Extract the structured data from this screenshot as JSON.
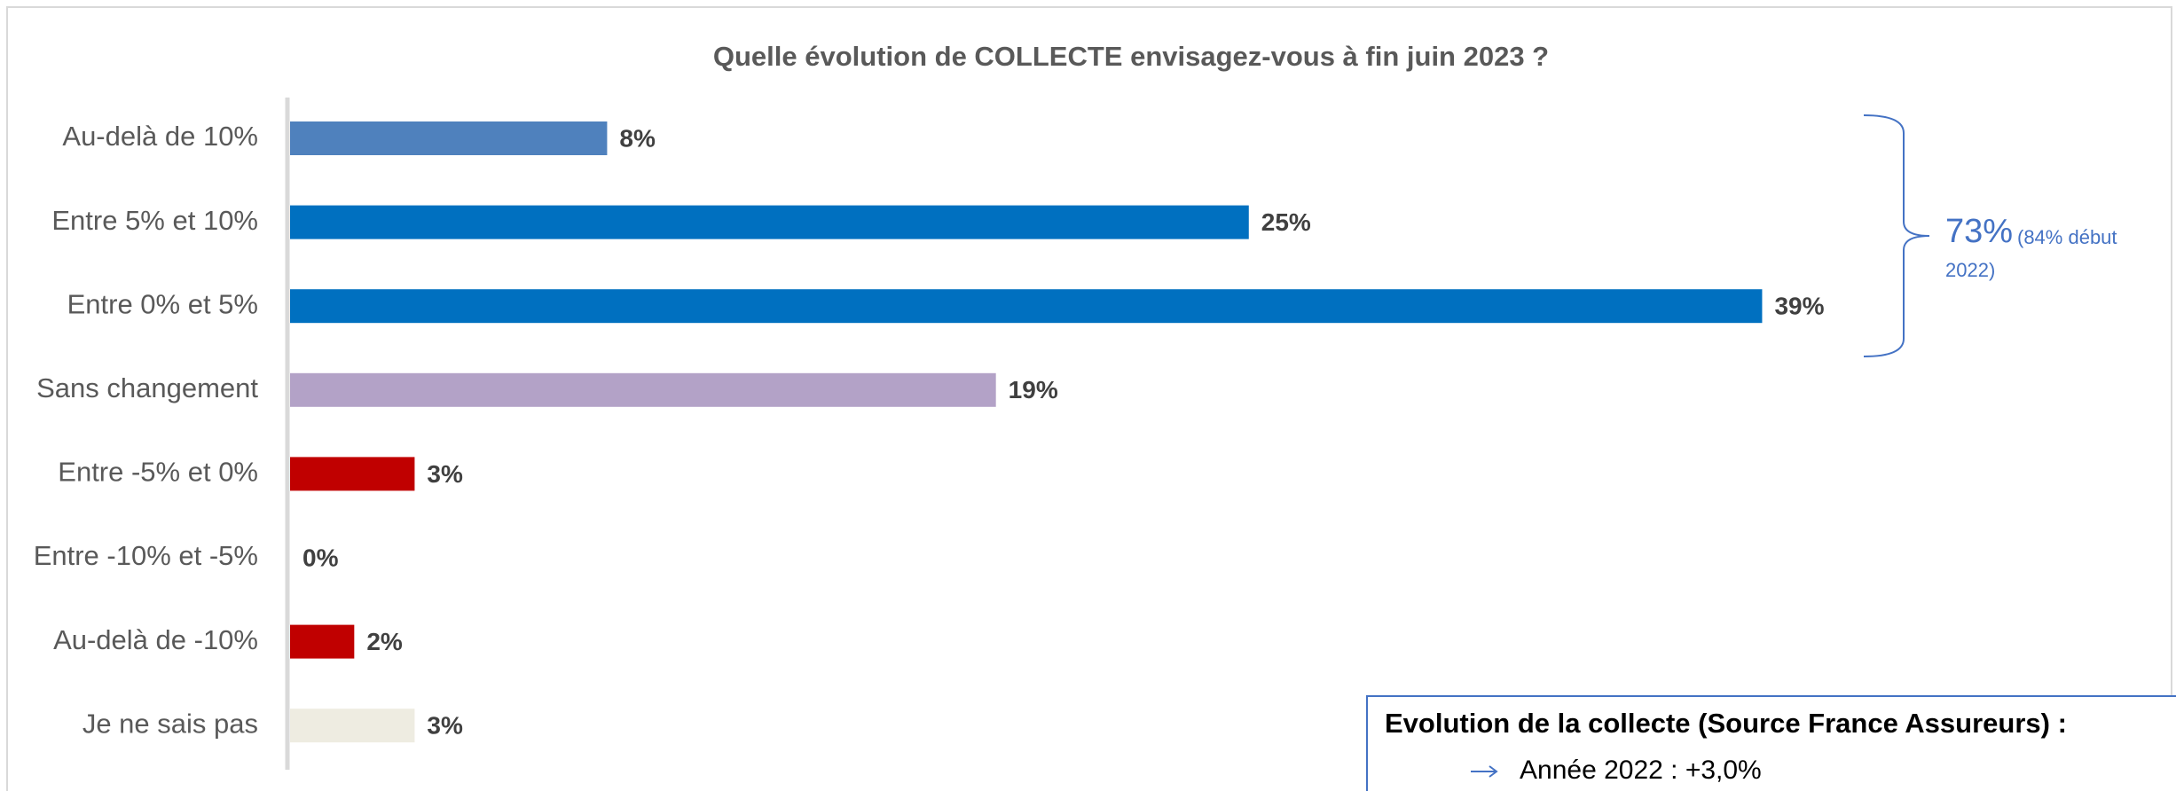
{
  "chart_data": {
    "type": "bar",
    "orientation": "horizontal",
    "title": "Quelle évolution de COLLECTE envisagez-vous à fin juin 2023 ?",
    "categories": [
      "Au-delà de 10%",
      "Entre 5% et 10%",
      "Entre 0% et 5%",
      "Sans changement",
      "Entre -5% et 0%",
      "Entre -10% et -5%",
      "Au-delà de -10%",
      "Je ne sais pas"
    ],
    "values": [
      8.4,
      25.4,
      39,
      18.7,
      3.3,
      0,
      1.7,
      3.3
    ],
    "value_labels": [
      "8%",
      "25%",
      "39%",
      "19%",
      "3%",
      "0%",
      "2%",
      "3%"
    ],
    "colors": [
      "#4f81bd",
      "#0070c0",
      "#0070c0",
      "#b3a2c7",
      "#c00000",
      "#c00000",
      "#c00000",
      "#eeece1"
    ],
    "bracket": {
      "label": "73%",
      "note": "(84% début 2022)",
      "color": "#4472c4"
    },
    "info_box": {
      "title": "Evolution de la collecte (Source France Assureurs) :",
      "items": [
        "Année 2022 : +3,0%"
      ]
    }
  }
}
